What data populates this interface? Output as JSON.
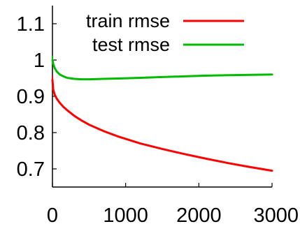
{
  "chart_data": {
    "type": "line",
    "title": "",
    "xlabel": "",
    "ylabel": "",
    "xlim": [
      0,
      3000
    ],
    "ylim": [
      0.65,
      1.15
    ],
    "x_ticks": [
      0,
      1000,
      2000,
      3000
    ],
    "x_tick_labels": [
      "0",
      "1000",
      "2000",
      "3000"
    ],
    "y_ticks": [
      0.7,
      0.8,
      0.9,
      1.0,
      1.1
    ],
    "y_tick_labels": [
      "0.7",
      "0.8",
      "0.9",
      "1",
      "1.1"
    ],
    "grid": false,
    "legend_position": "top-right",
    "series": [
      {
        "name": "train rmse",
        "color": "#ff0000",
        "x": [
          0,
          10,
          30,
          60,
          100,
          150,
          200,
          300,
          400,
          500,
          700,
          900,
          1200,
          1500,
          1800,
          2100,
          2400,
          2700,
          3000
        ],
        "y": [
          0.945,
          0.92,
          0.905,
          0.893,
          0.882,
          0.871,
          0.862,
          0.846,
          0.833,
          0.822,
          0.804,
          0.789,
          0.77,
          0.755,
          0.741,
          0.728,
          0.716,
          0.705,
          0.695
        ]
      },
      {
        "name": "test rmse",
        "color": "#00bb00",
        "x": [
          0,
          10,
          30,
          60,
          100,
          150,
          200,
          300,
          400,
          500,
          700,
          900,
          1200,
          1500,
          1800,
          2100,
          2400,
          2700,
          3000
        ],
        "y": [
          1.0,
          0.99,
          0.978,
          0.968,
          0.96,
          0.955,
          0.951,
          0.948,
          0.947,
          0.947,
          0.948,
          0.949,
          0.951,
          0.953,
          0.955,
          0.957,
          0.958,
          0.959,
          0.96
        ]
      }
    ]
  }
}
